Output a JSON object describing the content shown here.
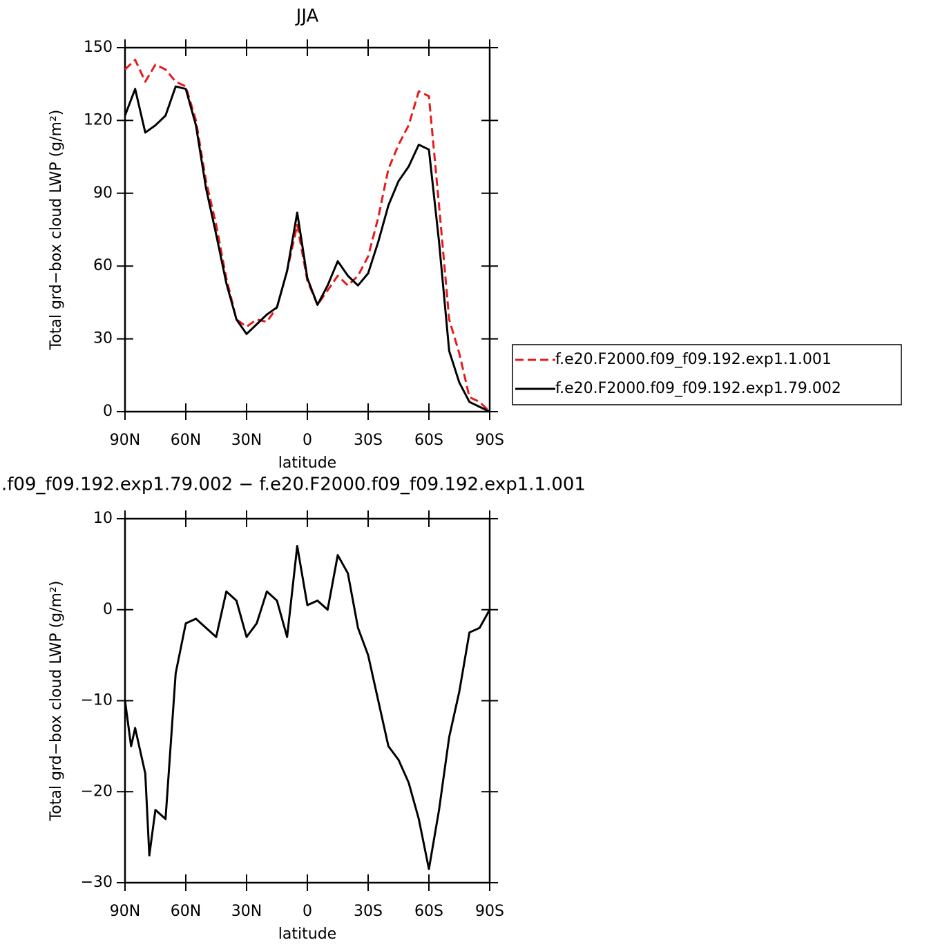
{
  "chart_data": [
    {
      "type": "line",
      "title": "JJA",
      "x_label": "latitude",
      "y_label": "Total grd−box cloud LWP (g/m²)",
      "x": [
        90,
        85,
        80,
        75,
        70,
        65,
        60,
        55,
        50,
        45,
        40,
        35,
        30,
        25,
        20,
        15,
        10,
        5,
        0,
        -5,
        -10,
        -15,
        -20,
        -25,
        -30,
        -35,
        -40,
        -45,
        -50,
        -55,
        -60,
        -65,
        -70,
        -75,
        -80,
        -85,
        -90
      ],
      "series": [
        {
          "name": "f.e20.F2000.f09_f09.192.exp1.1.001",
          "color": "#e8191a",
          "dash": true,
          "values": [
            141,
            145,
            136,
            143,
            141,
            136,
            134,
            120,
            95,
            77,
            55,
            38,
            35,
            38,
            37,
            43,
            58,
            77,
            54,
            44,
            50,
            56,
            52,
            56,
            64,
            80,
            100,
            110,
            118,
            132,
            130,
            85,
            38,
            24,
            6,
            4,
            0
          ]
        },
        {
          "name": "f.e20.F2000.f09_f09.192.exp1.79.002",
          "color": "#000000",
          "dash": false,
          "values": [
            122,
            133,
            115,
            118,
            122,
            134,
            133,
            118,
            92,
            73,
            53,
            38,
            32,
            36,
            40,
            43,
            58,
            82,
            55,
            44,
            52,
            62,
            56,
            52,
            57,
            70,
            85,
            95,
            101,
            110,
            108,
            70,
            25,
            12,
            4,
            2,
            0
          ]
        }
      ],
      "xlim": [
        90,
        -90
      ],
      "xticks": [
        {
          "value": 90,
          "label": "90N"
        },
        {
          "value": 60,
          "label": "60N"
        },
        {
          "value": 30,
          "label": "30N"
        },
        0,
        {
          "value": -30,
          "label": "30S"
        },
        {
          "value": -60,
          "label": "60S"
        },
        {
          "value": -90,
          "label": "90S"
        }
      ],
      "ylim": [
        0,
        150
      ],
      "yticks": [
        0,
        30,
        60,
        90,
        120,
        150
      ],
      "legend": "right"
    },
    {
      "type": "line",
      "title": ".f09_f09.192.exp1.79.002 − f.e20.F2000.f09_f09.192.exp1.1.001",
      "x_label": "latitude",
      "y_label": "Total grd−box cloud LWP (g/m²)",
      "x": [
        90,
        87,
        85,
        80,
        78,
        75,
        70,
        65,
        60,
        55,
        50,
        45,
        40,
        35,
        30,
        25,
        20,
        15,
        10,
        5,
        0,
        -5,
        -10,
        -15,
        -20,
        -25,
        -30,
        -35,
        -40,
        -45,
        -50,
        -55,
        -60,
        -65,
        -70,
        -75,
        -80,
        -85,
        -90
      ],
      "series": [
        {
          "color": "#000000",
          "values": [
            -10,
            -15,
            -13,
            -18,
            -27,
            -22,
            -23,
            -7,
            -1.5,
            -1,
            -2,
            -3,
            2,
            1,
            -3,
            -1.5,
            2,
            1,
            -3,
            7,
            0.5,
            1,
            0,
            6,
            4,
            -2,
            -5,
            -10,
            -15,
            -16.5,
            -19,
            -23,
            -28.5,
            -22,
            -14,
            -9,
            -2.5,
            -2,
            0
          ]
        }
      ],
      "xlim": [
        90,
        -90
      ],
      "xticks": [
        {
          "value": 90,
          "label": "90N"
        },
        {
          "value": 60,
          "label": "60N"
        },
        {
          "value": 30,
          "label": "30N"
        },
        0,
        {
          "value": -30,
          "label": "30S"
        },
        {
          "value": -60,
          "label": "60S"
        },
        {
          "value": -90,
          "label": "90S"
        }
      ],
      "ylim": [
        -30,
        10
      ],
      "yticks": [
        {
          "value": -30,
          "label": "−30"
        },
        {
          "value": -20,
          "label": "−20"
        },
        {
          "value": -10,
          "label": "−10"
        },
        0,
        10
      ]
    }
  ]
}
